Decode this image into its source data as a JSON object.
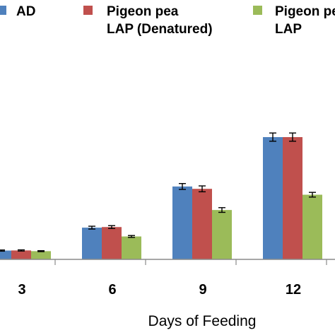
{
  "chart_data": {
    "type": "bar",
    "xlabel": "Days of Feeding",
    "ylabel": "",
    "categories": [
      "3",
      "6",
      "9",
      "12"
    ],
    "ylim": [
      0,
      10
    ],
    "grid": false,
    "legend_position": "top",
    "series": [
      {
        "name": "AD",
        "color": "#4f81bd",
        "values": [
          0.75,
          2.7,
          6.2,
          10.4
        ],
        "errors": [
          0.05,
          0.12,
          0.25,
          0.35
        ]
      },
      {
        "name": "Pigeon pea LAP (Denatured)",
        "color": "#c0504d",
        "values": [
          0.76,
          2.75,
          6.0,
          10.4
        ],
        "errors": [
          0.05,
          0.12,
          0.25,
          0.35
        ]
      },
      {
        "name": "Pigeon pea LAP",
        "color": "#9bbb59",
        "values": [
          0.7,
          1.95,
          4.2,
          5.5
        ],
        "errors": [
          0.04,
          0.08,
          0.2,
          0.2
        ]
      }
    ]
  }
}
